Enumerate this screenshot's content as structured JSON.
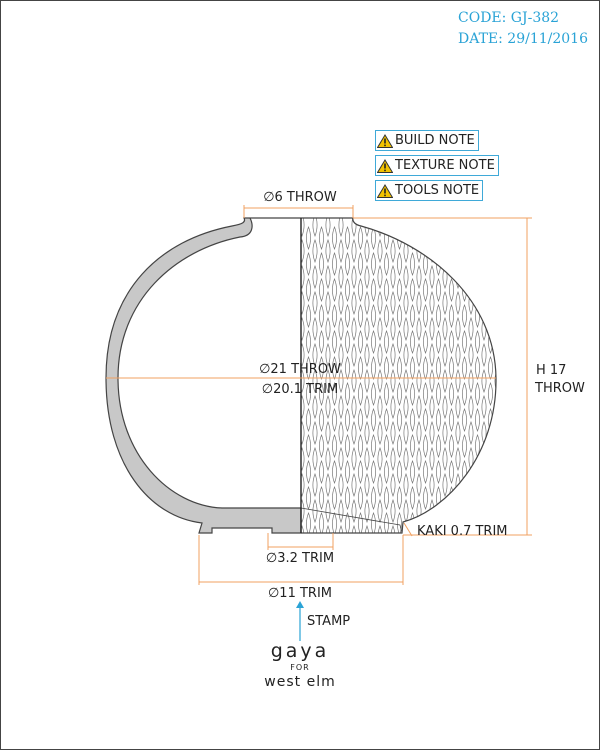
{
  "meta": {
    "code": "CODE: GJ-382",
    "date": "DATE: 29/11/2016"
  },
  "notes": [
    {
      "label": "BUILD NOTE",
      "icon": "warning-icon"
    },
    {
      "label": "TEXTURE NOTE",
      "icon": "warning-icon"
    },
    {
      "label": "TOOLS NOTE",
      "icon": "warning-icon"
    }
  ],
  "dimensions": {
    "top_throw": "∅6 THROW",
    "width_throw": "∅21 THROW",
    "width_trim": "∅20.1 TRIM",
    "height_line1": "H 17",
    "height_line2": "THROW",
    "kaki": "KAKI 0.7 TRIM",
    "foot_inner": "∅3.2 TRIM",
    "foot_outer": "∅11 TRIM",
    "stamp": "STAMP"
  },
  "brand": {
    "line1": "gaya",
    "line2": "FOR",
    "line3": "west elm"
  },
  "colors": {
    "meta": "#2aa3d6",
    "dimension_line": "#f0a060",
    "note_border": "#3fa9d8",
    "warning": "#f2c200",
    "wall_fill": "#c8c8c8",
    "stamp_arrow": "#2aa3d6"
  }
}
